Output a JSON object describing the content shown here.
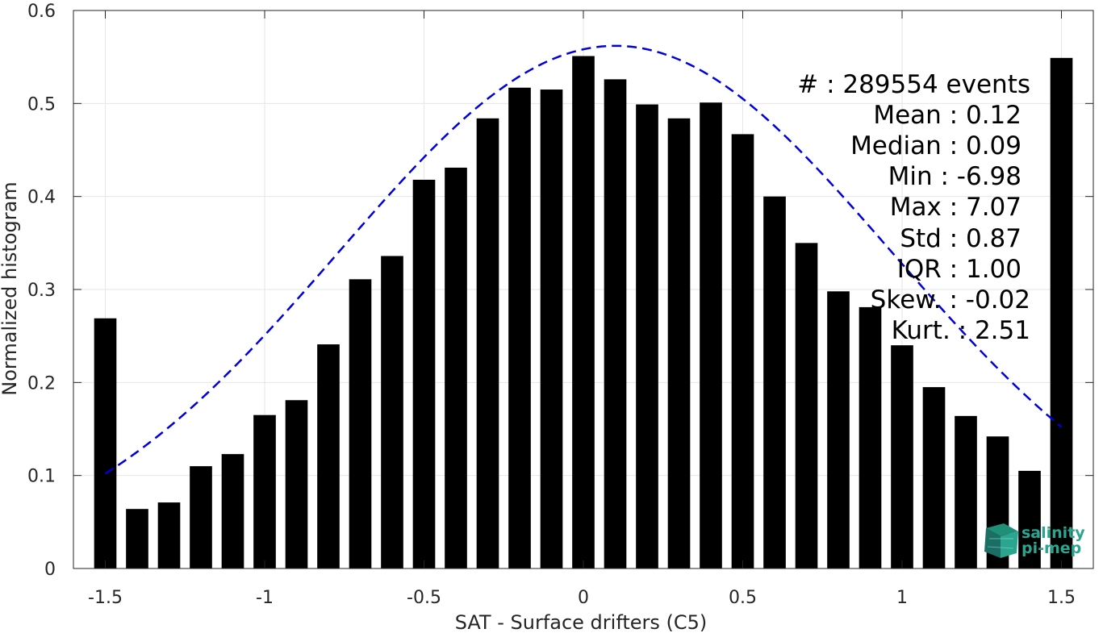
{
  "chart_data": {
    "type": "bar",
    "title": "",
    "xlabel": "SAT - Surface drifters (C5)",
    "ylabel": "Normalized histogram",
    "xlim": [
      -1.6,
      1.6
    ],
    "ylim": [
      0,
      0.6
    ],
    "grid": true,
    "xticks": [
      -1.5,
      -1,
      -0.5,
      0,
      0.5,
      1,
      1.5
    ],
    "xtick_labels": [
      "-1.5",
      "-1",
      "-0.5",
      "0",
      "0.5",
      "1",
      "1.5"
    ],
    "yticks": [
      0,
      0.1,
      0.2,
      0.3,
      0.4,
      0.5,
      0.6
    ],
    "ytick_labels": [
      "0",
      "0.1",
      "0.2",
      "0.3",
      "0.4",
      "0.5",
      "0.6"
    ],
    "bar_width": 0.07,
    "bar_color": "#000000",
    "x": [
      -1.5,
      -1.4,
      -1.3,
      -1.2,
      -1.1,
      -1.0,
      -0.9,
      -0.8,
      -0.7,
      -0.6,
      -0.5,
      -0.4,
      -0.3,
      -0.2,
      -0.1,
      0.0,
      0.1,
      0.2,
      0.3,
      0.4,
      0.5,
      0.6,
      0.7,
      0.8,
      0.9,
      1.0,
      1.1,
      1.2,
      1.3,
      1.4,
      1.5
    ],
    "values": [
      0.269,
      0.064,
      0.071,
      0.11,
      0.123,
      0.165,
      0.181,
      0.241,
      0.311,
      0.336,
      0.418,
      0.431,
      0.484,
      0.517,
      0.515,
      0.551,
      0.526,
      0.499,
      0.484,
      0.501,
      0.467,
      0.4,
      0.35,
      0.298,
      0.281,
      0.24,
      0.195,
      0.164,
      0.142,
      0.105,
      0.549
    ],
    "fit": {
      "type": "gaussian",
      "mean": 0.1,
      "std": 0.866,
      "peak": 0.562,
      "x_range": [
        -1.5,
        1.5
      ],
      "color": "#0000dd",
      "style": "dashed"
    },
    "annotations": [
      "#  : 289554 events",
      "Mean : 0.12",
      "Median : 0.09",
      "Min : -6.98",
      "Max : 7.07",
      "Std : 0.87",
      "IQR : 1.00",
      "Skew. : -0.02",
      "Kurt. : 2.51"
    ],
    "logo": {
      "icon": "salinity-cube-icon",
      "line1": "salinity",
      "line2": "pi-mep",
      "color": "#2aa58f"
    }
  }
}
